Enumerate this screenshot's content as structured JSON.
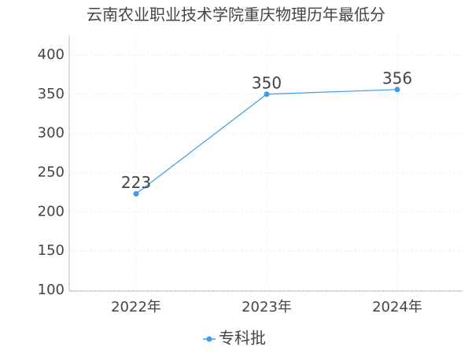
{
  "chart_data": {
    "type": "line",
    "title": "云南农业职业技术学院重庆物理历年最低分",
    "categories": [
      "2022年",
      "2023年",
      "2024年"
    ],
    "series": [
      {
        "name": "专科批",
        "color": "#3d9bef",
        "values": [
          223,
          350,
          356
        ]
      }
    ],
    "ylim": [
      100,
      425
    ],
    "yticks": [
      100,
      150,
      200,
      250,
      300,
      350,
      400
    ],
    "grid": true,
    "legend": "bottom"
  }
}
